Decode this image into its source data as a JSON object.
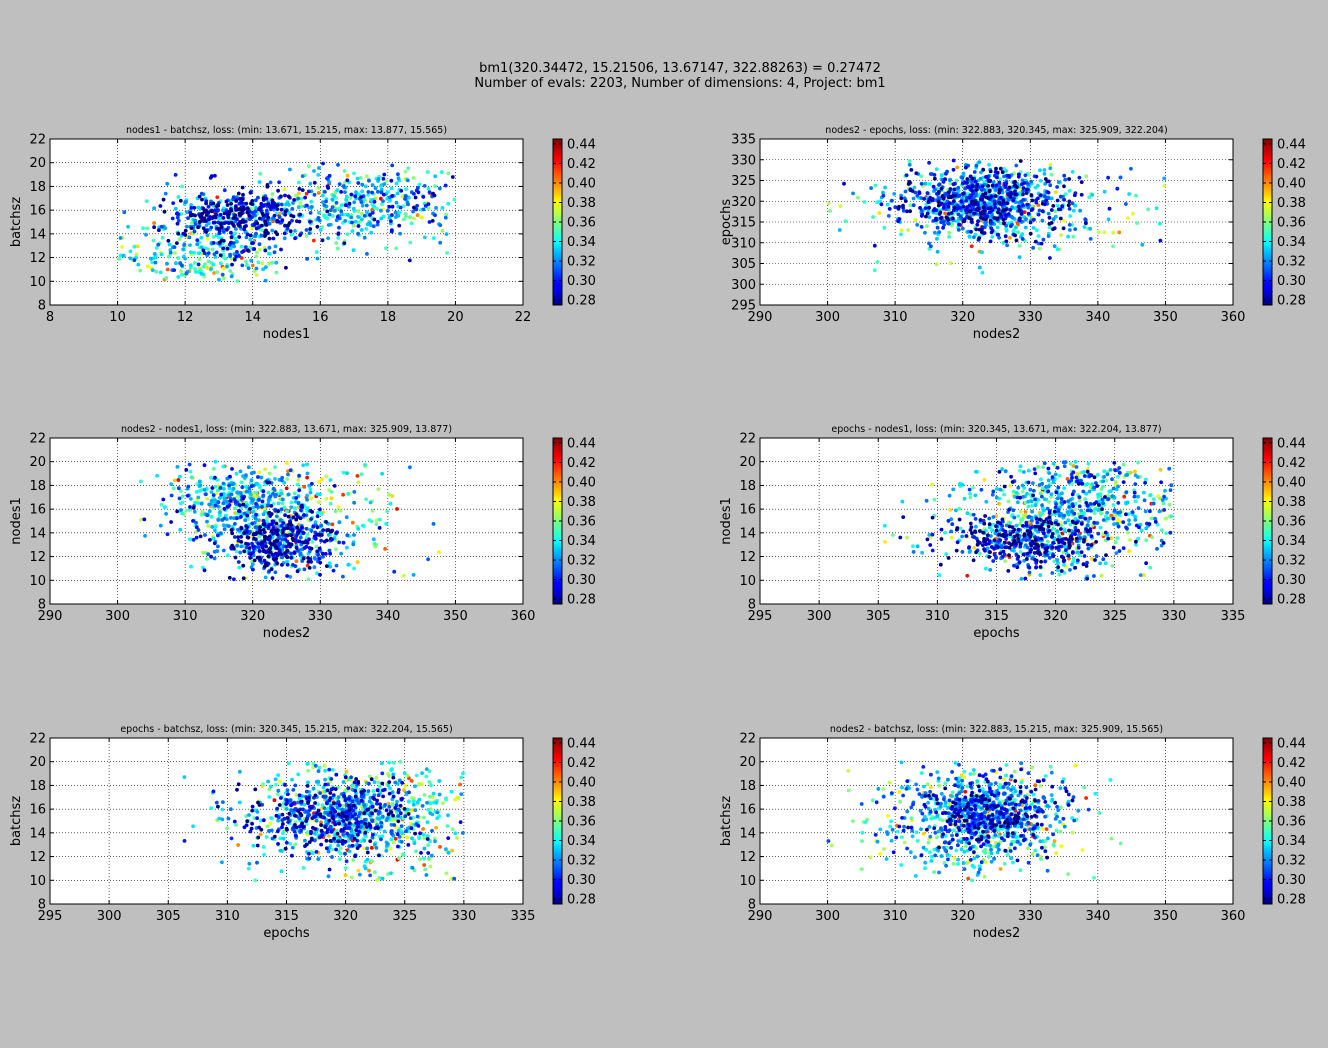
{
  "figure": {
    "title_line1": "bm1(320.34472, 15.21506, 13.67147, 322.88263) = 0.27472",
    "title_line2": "Number of evals: 2203, Number of dimensions: 4, Project: bm1"
  },
  "colorbar": {
    "ticks": [
      "0.28",
      "0.30",
      "0.32",
      "0.34",
      "0.36",
      "0.38",
      "0.40",
      "0.42",
      "0.44"
    ],
    "min": 0.275,
    "max": 0.445,
    "colormap": "jet"
  },
  "chart_data": [
    {
      "type": "scatter",
      "title": "nodes1 - batchsz, loss:  (min: 13.671, 15.215, max: 13.877, 15.565)",
      "xlabel": "nodes1",
      "ylabel": "batchsz",
      "xlim": [
        8,
        22
      ],
      "ylim": [
        8,
        22
      ],
      "xticks": [
        "8",
        "10",
        "12",
        "14",
        "16",
        "18",
        "20",
        "22"
      ],
      "yticks": [
        "8",
        "10",
        "12",
        "14",
        "16",
        "18",
        "20",
        "22"
      ],
      "grid": true,
      "x_range": [
        10,
        20
      ],
      "y_range": [
        10,
        20
      ],
      "clusters": [
        {
          "cx": 13.5,
          "cy": 15.4,
          "sx": 1.1,
          "sy": 1.2,
          "weight": 0.45,
          "loss": 0.3
        },
        {
          "cx": 17.5,
          "cy": 16.5,
          "sx": 1.6,
          "sy": 1.6,
          "weight": 0.35,
          "loss": 0.33
        },
        {
          "cx": 12.5,
          "cy": 12,
          "sx": 1.3,
          "sy": 1.4,
          "weight": 0.2,
          "loss": 0.34
        }
      ]
    },
    {
      "type": "scatter",
      "title": "nodes2 - epochs, loss:  (min: 322.883, 320.345, max: 325.909, 322.204)",
      "xlabel": "nodes2",
      "ylabel": "epochs",
      "xlim": [
        290,
        360
      ],
      "ylim": [
        295,
        335
      ],
      "xticks": [
        "290",
        "300",
        "310",
        "320",
        "330",
        "340",
        "350",
        "360"
      ],
      "yticks": [
        "295",
        "300",
        "305",
        "310",
        "315",
        "320",
        "325",
        "330",
        "335"
      ],
      "grid": true,
      "x_range": [
        300,
        350
      ],
      "y_range": [
        300,
        330
      ],
      "clusters": [
        {
          "cx": 323,
          "cy": 320,
          "sx": 6,
          "sy": 4,
          "weight": 0.8,
          "loss": 0.31
        },
        {
          "cx": 325,
          "cy": 318,
          "sx": 10,
          "sy": 6,
          "weight": 0.2,
          "loss": 0.34
        }
      ]
    },
    {
      "type": "scatter",
      "title": "nodes2 - nodes1, loss:  (min: 322.883, 13.671, max: 325.909, 13.877)",
      "xlabel": "nodes2",
      "ylabel": "nodes1",
      "xlim": [
        290,
        360
      ],
      "ylim": [
        8,
        22
      ],
      "xticks": [
        "290",
        "300",
        "310",
        "320",
        "330",
        "340",
        "350",
        "360"
      ],
      "yticks": [
        "8",
        "10",
        "12",
        "14",
        "16",
        "18",
        "20",
        "22"
      ],
      "grid": true,
      "x_range": [
        300,
        350
      ],
      "y_range": [
        10,
        20
      ],
      "clusters": [
        {
          "cx": 324,
          "cy": 13.3,
          "sx": 4,
          "sy": 1.2,
          "weight": 0.4,
          "loss": 0.3
        },
        {
          "cx": 318,
          "cy": 16.5,
          "sx": 5,
          "sy": 1.5,
          "weight": 0.35,
          "loss": 0.33
        },
        {
          "cx": 325,
          "cy": 16,
          "sx": 9,
          "sy": 3,
          "weight": 0.25,
          "loss": 0.34
        }
      ]
    },
    {
      "type": "scatter",
      "title": "epochs - nodes1, loss:  (min: 320.345, 13.671, max: 322.204, 13.877)",
      "xlabel": "epochs",
      "ylabel": "nodes1",
      "xlim": [
        295,
        335
      ],
      "ylim": [
        8,
        22
      ],
      "xticks": [
        "295",
        "300",
        "305",
        "310",
        "315",
        "320",
        "325",
        "330",
        "335"
      ],
      "yticks": [
        "8",
        "10",
        "12",
        "14",
        "16",
        "18",
        "20",
        "22"
      ],
      "grid": true,
      "x_range": [
        300,
        330
      ],
      "y_range": [
        10,
        20
      ],
      "clusters": [
        {
          "cx": 318,
          "cy": 13.3,
          "sx": 3.5,
          "sy": 1.1,
          "weight": 0.4,
          "loss": 0.3
        },
        {
          "cx": 322,
          "cy": 17,
          "sx": 4,
          "sy": 1.8,
          "weight": 0.4,
          "loss": 0.33
        },
        {
          "cx": 320,
          "cy": 14.5,
          "sx": 7,
          "sy": 2.5,
          "weight": 0.2,
          "loss": 0.34
        }
      ]
    },
    {
      "type": "scatter",
      "title": "epochs - batchsz, loss:  (min: 320.345, 15.215, max: 322.204, 15.565)",
      "xlabel": "epochs",
      "ylabel": "batchsz",
      "xlim": [
        295,
        335
      ],
      "ylim": [
        8,
        22
      ],
      "xticks": [
        "295",
        "300",
        "305",
        "310",
        "315",
        "320",
        "325",
        "330",
        "335"
      ],
      "yticks": [
        "8",
        "10",
        "12",
        "14",
        "16",
        "18",
        "20",
        "22"
      ],
      "grid": true,
      "x_range": [
        300,
        330
      ],
      "y_range": [
        10,
        20
      ],
      "clusters": [
        {
          "cx": 319,
          "cy": 15.5,
          "sx": 3.5,
          "sy": 1.5,
          "weight": 0.55,
          "loss": 0.31
        },
        {
          "cx": 322,
          "cy": 15,
          "sx": 5,
          "sy": 2.6,
          "weight": 0.45,
          "loss": 0.34
        }
      ]
    },
    {
      "type": "scatter",
      "title": "nodes2 - batchsz, loss:  (min: 322.883, 15.215, max: 325.909, 15.565)",
      "xlabel": "nodes2",
      "ylabel": "batchsz",
      "xlim": [
        290,
        360
      ],
      "ylim": [
        8,
        22
      ],
      "xticks": [
        "290",
        "300",
        "310",
        "320",
        "330",
        "340",
        "350",
        "360"
      ],
      "yticks": [
        "8",
        "10",
        "12",
        "14",
        "16",
        "18",
        "20",
        "22"
      ],
      "grid": true,
      "x_range": [
        300,
        350
      ],
      "y_range": [
        10,
        20
      ],
      "clusters": [
        {
          "cx": 323,
          "cy": 15.5,
          "sx": 5,
          "sy": 1.6,
          "weight": 0.6,
          "loss": 0.31
        },
        {
          "cx": 322,
          "cy": 15,
          "sx": 8,
          "sy": 2.5,
          "weight": 0.4,
          "loss": 0.34
        }
      ]
    }
  ]
}
